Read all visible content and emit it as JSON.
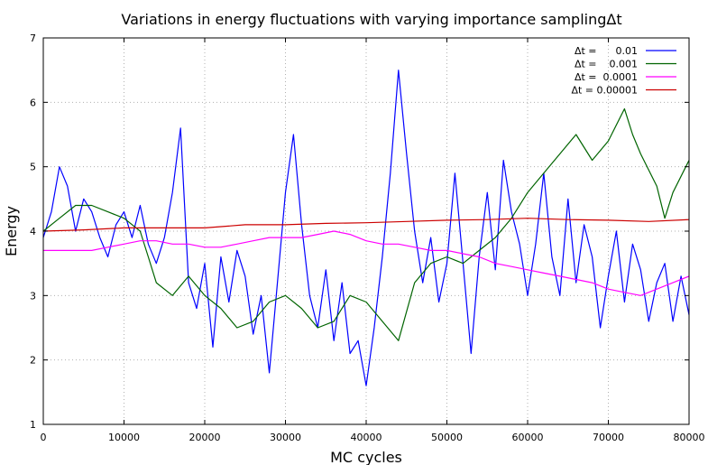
{
  "chart_data": {
    "type": "line",
    "title": "Variations in energy fluctuations with varying importance samplingΔt",
    "xlabel": "MC cycles",
    "ylabel": "Energy",
    "xlim": [
      0,
      80000
    ],
    "ylim": [
      1,
      7
    ],
    "xticks": [
      "0",
      "10000",
      "20000",
      "30000",
      "40000",
      "50000",
      "60000",
      "70000",
      "80000"
    ],
    "yticks": [
      "1",
      "2",
      "3",
      "4",
      "5",
      "6",
      "7"
    ],
    "grid": true,
    "legend_position": "top-right",
    "series": [
      {
        "name": "Δt =      0.01",
        "color": "#0000ff",
        "points": [
          [
            0,
            3.9
          ],
          [
            1000,
            4.3
          ],
          [
            2000,
            5.0
          ],
          [
            3000,
            4.7
          ],
          [
            4000,
            4.0
          ],
          [
            5000,
            4.5
          ],
          [
            6000,
            4.3
          ],
          [
            7000,
            3.9
          ],
          [
            8000,
            3.6
          ],
          [
            9000,
            4.1
          ],
          [
            10000,
            4.3
          ],
          [
            11000,
            3.9
          ],
          [
            12000,
            4.4
          ],
          [
            13000,
            3.8
          ],
          [
            14000,
            3.5
          ],
          [
            15000,
            3.9
          ],
          [
            16000,
            4.6
          ],
          [
            17000,
            5.6
          ],
          [
            18000,
            3.2
          ],
          [
            19000,
            2.8
          ],
          [
            20000,
            3.5
          ],
          [
            21000,
            2.2
          ],
          [
            22000,
            3.6
          ],
          [
            23000,
            2.9
          ],
          [
            24000,
            3.7
          ],
          [
            25000,
            3.3
          ],
          [
            26000,
            2.4
          ],
          [
            27000,
            3.0
          ],
          [
            28000,
            1.8
          ],
          [
            29000,
            3.2
          ],
          [
            30000,
            4.6
          ],
          [
            31000,
            5.5
          ],
          [
            32000,
            4.1
          ],
          [
            33000,
            3.0
          ],
          [
            34000,
            2.5
          ],
          [
            35000,
            3.4
          ],
          [
            36000,
            2.3
          ],
          [
            37000,
            3.2
          ],
          [
            38000,
            2.1
          ],
          [
            39000,
            2.3
          ],
          [
            40000,
            1.6
          ],
          [
            41000,
            2.5
          ],
          [
            42000,
            3.6
          ],
          [
            43000,
            4.9
          ],
          [
            44000,
            6.5
          ],
          [
            45000,
            5.2
          ],
          [
            46000,
            4.0
          ],
          [
            47000,
            3.2
          ],
          [
            48000,
            3.9
          ],
          [
            49000,
            2.9
          ],
          [
            50000,
            3.5
          ],
          [
            51000,
            4.9
          ],
          [
            52000,
            3.5
          ],
          [
            53000,
            2.1
          ],
          [
            54000,
            3.6
          ],
          [
            55000,
            4.6
          ],
          [
            56000,
            3.4
          ],
          [
            57000,
            5.1
          ],
          [
            58000,
            4.3
          ],
          [
            59000,
            3.8
          ],
          [
            60000,
            3.0
          ],
          [
            61000,
            3.8
          ],
          [
            62000,
            4.9
          ],
          [
            63000,
            3.6
          ],
          [
            64000,
            3.0
          ],
          [
            65000,
            4.5
          ],
          [
            66000,
            3.2
          ],
          [
            67000,
            4.1
          ],
          [
            68000,
            3.6
          ],
          [
            69000,
            2.5
          ],
          [
            70000,
            3.3
          ],
          [
            71000,
            4.0
          ],
          [
            72000,
            2.9
          ],
          [
            73000,
            3.8
          ],
          [
            74000,
            3.4
          ],
          [
            75000,
            2.6
          ],
          [
            76000,
            3.2
          ],
          [
            77000,
            3.5
          ],
          [
            78000,
            2.6
          ],
          [
            79000,
            3.3
          ],
          [
            80000,
            2.7
          ]
        ]
      },
      {
        "name": "Δt =    0.001",
        "color": "#006400",
        "points": [
          [
            0,
            4.0
          ],
          [
            2000,
            4.2
          ],
          [
            4000,
            4.4
          ],
          [
            6000,
            4.4
          ],
          [
            8000,
            4.3
          ],
          [
            10000,
            4.2
          ],
          [
            12000,
            4.0
          ],
          [
            13000,
            3.6
          ],
          [
            14000,
            3.2
          ],
          [
            16000,
            3.0
          ],
          [
            18000,
            3.3
          ],
          [
            20000,
            3.0
          ],
          [
            22000,
            2.8
          ],
          [
            24000,
            2.5
          ],
          [
            26000,
            2.6
          ],
          [
            28000,
            2.9
          ],
          [
            30000,
            3.0
          ],
          [
            32000,
            2.8
          ],
          [
            34000,
            2.5
          ],
          [
            36000,
            2.6
          ],
          [
            38000,
            3.0
          ],
          [
            40000,
            2.9
          ],
          [
            42000,
            2.6
          ],
          [
            44000,
            2.3
          ],
          [
            46000,
            3.2
          ],
          [
            48000,
            3.5
          ],
          [
            50000,
            3.6
          ],
          [
            52000,
            3.5
          ],
          [
            54000,
            3.7
          ],
          [
            56000,
            3.9
          ],
          [
            58000,
            4.2
          ],
          [
            60000,
            4.6
          ],
          [
            62000,
            4.9
          ],
          [
            64000,
            5.2
          ],
          [
            66000,
            5.5
          ],
          [
            68000,
            5.1
          ],
          [
            70000,
            5.4
          ],
          [
            72000,
            5.9
          ],
          [
            73000,
            5.5
          ],
          [
            74000,
            5.2
          ],
          [
            76000,
            4.7
          ],
          [
            77000,
            4.2
          ],
          [
            78000,
            4.6
          ],
          [
            80000,
            5.1
          ]
        ]
      },
      {
        "name": "Δt =  0.0001",
        "color": "#ff00ff",
        "points": [
          [
            0,
            3.7
          ],
          [
            2000,
            3.7
          ],
          [
            4000,
            3.7
          ],
          [
            6000,
            3.7
          ],
          [
            8000,
            3.75
          ],
          [
            10000,
            3.8
          ],
          [
            12000,
            3.85
          ],
          [
            14000,
            3.85
          ],
          [
            16000,
            3.8
          ],
          [
            18000,
            3.8
          ],
          [
            20000,
            3.75
          ],
          [
            22000,
            3.75
          ],
          [
            24000,
            3.8
          ],
          [
            26000,
            3.85
          ],
          [
            28000,
            3.9
          ],
          [
            30000,
            3.9
          ],
          [
            32000,
            3.9
          ],
          [
            34000,
            3.95
          ],
          [
            36000,
            4.0
          ],
          [
            38000,
            3.95
          ],
          [
            40000,
            3.85
          ],
          [
            42000,
            3.8
          ],
          [
            44000,
            3.8
          ],
          [
            46000,
            3.75
          ],
          [
            48000,
            3.7
          ],
          [
            50000,
            3.7
          ],
          [
            52000,
            3.65
          ],
          [
            54000,
            3.6
          ],
          [
            56000,
            3.5
          ],
          [
            58000,
            3.45
          ],
          [
            60000,
            3.4
          ],
          [
            62000,
            3.35
          ],
          [
            64000,
            3.3
          ],
          [
            66000,
            3.25
          ],
          [
            68000,
            3.2
          ],
          [
            70000,
            3.1
          ],
          [
            72000,
            3.05
          ],
          [
            74000,
            3.0
          ],
          [
            76000,
            3.1
          ],
          [
            78000,
            3.2
          ],
          [
            80000,
            3.3
          ]
        ]
      },
      {
        "name": "Δt = 0.00001",
        "color": "#cc0000",
        "points": [
          [
            0,
            4.0
          ],
          [
            5000,
            4.02
          ],
          [
            10000,
            4.05
          ],
          [
            15000,
            4.05
          ],
          [
            20000,
            4.05
          ],
          [
            25000,
            4.1
          ],
          [
            30000,
            4.1
          ],
          [
            35000,
            4.12
          ],
          [
            40000,
            4.13
          ],
          [
            45000,
            4.15
          ],
          [
            50000,
            4.17
          ],
          [
            55000,
            4.18
          ],
          [
            60000,
            4.2
          ],
          [
            65000,
            4.18
          ],
          [
            70000,
            4.17
          ],
          [
            75000,
            4.15
          ],
          [
            80000,
            4.18
          ]
        ]
      }
    ]
  }
}
